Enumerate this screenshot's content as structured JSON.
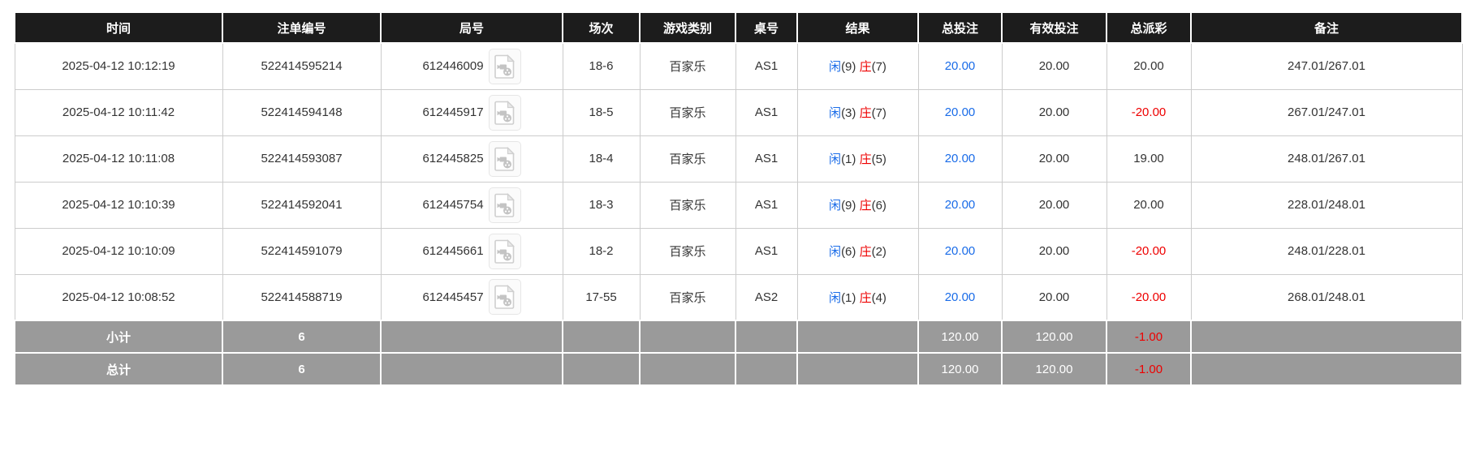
{
  "colors": {
    "header_bg": "#1c1c1c",
    "header_text": "#ffffff",
    "footer_bg": "#9a9a9a",
    "footer_text": "#ffffff",
    "blue": "#1a6ce8",
    "red": "#ee0000",
    "border": "#cccccc",
    "text": "#333333"
  },
  "icons": {
    "video_replay": "video-file-icon"
  },
  "table": {
    "columns": [
      {
        "key": "time",
        "label": "时间"
      },
      {
        "key": "bet_id",
        "label": "注单编号"
      },
      {
        "key": "round_id",
        "label": "局号"
      },
      {
        "key": "session",
        "label": "场次"
      },
      {
        "key": "game_type",
        "label": "游戏类别"
      },
      {
        "key": "table_no",
        "label": "桌号"
      },
      {
        "key": "result",
        "label": "结果"
      },
      {
        "key": "total_bet",
        "label": "总投注"
      },
      {
        "key": "valid_bet",
        "label": "有效投注"
      },
      {
        "key": "payout",
        "label": "总派彩"
      },
      {
        "key": "remark",
        "label": "备注"
      }
    ],
    "result_labels": {
      "player": "闲",
      "banker": "庄"
    },
    "rows": [
      {
        "time": "2025-04-12 10:12:19",
        "bet_id": "522414595214",
        "round_id": "612446009",
        "session": "18-6",
        "game_type": "百家乐",
        "table_no": "AS1",
        "player_score": "(9)",
        "banker_score": "(7)",
        "total_bet": "20.00",
        "valid_bet": "20.00",
        "payout": "20.00",
        "remark": "247.01/267.01"
      },
      {
        "time": "2025-04-12 10:11:42",
        "bet_id": "522414594148",
        "round_id": "612445917",
        "session": "18-5",
        "game_type": "百家乐",
        "table_no": "AS1",
        "player_score": "(3)",
        "banker_score": "(7)",
        "total_bet": "20.00",
        "valid_bet": "20.00",
        "payout": "-20.00",
        "remark": "267.01/247.01"
      },
      {
        "time": "2025-04-12 10:11:08",
        "bet_id": "522414593087",
        "round_id": "612445825",
        "session": "18-4",
        "game_type": "百家乐",
        "table_no": "AS1",
        "player_score": "(1)",
        "banker_score": "(5)",
        "total_bet": "20.00",
        "valid_bet": "20.00",
        "payout": "19.00",
        "remark": "248.01/267.01"
      },
      {
        "time": "2025-04-12 10:10:39",
        "bet_id": "522414592041",
        "round_id": "612445754",
        "session": "18-3",
        "game_type": "百家乐",
        "table_no": "AS1",
        "player_score": "(9)",
        "banker_score": "(6)",
        "total_bet": "20.00",
        "valid_bet": "20.00",
        "payout": "20.00",
        "remark": "228.01/248.01"
      },
      {
        "time": "2025-04-12 10:10:09",
        "bet_id": "522414591079",
        "round_id": "612445661",
        "session": "18-2",
        "game_type": "百家乐",
        "table_no": "AS1",
        "player_score": "(6)",
        "banker_score": "(2)",
        "total_bet": "20.00",
        "valid_bet": "20.00",
        "payout": "-20.00",
        "remark": "248.01/228.01"
      },
      {
        "time": "2025-04-12 10:08:52",
        "bet_id": "522414588719",
        "round_id": "612445457",
        "session": "17-55",
        "game_type": "百家乐",
        "table_no": "AS2",
        "player_score": "(1)",
        "banker_score": "(4)",
        "total_bet": "20.00",
        "valid_bet": "20.00",
        "payout": "-20.00",
        "remark": "268.01/248.01"
      }
    ],
    "footer_rows": [
      {
        "label": "小计",
        "count": "6",
        "total_bet": "120.00",
        "valid_bet": "120.00",
        "payout": "-1.00"
      },
      {
        "label": "总计",
        "count": "6",
        "total_bet": "120.00",
        "valid_bet": "120.00",
        "payout": "-1.00"
      }
    ]
  }
}
